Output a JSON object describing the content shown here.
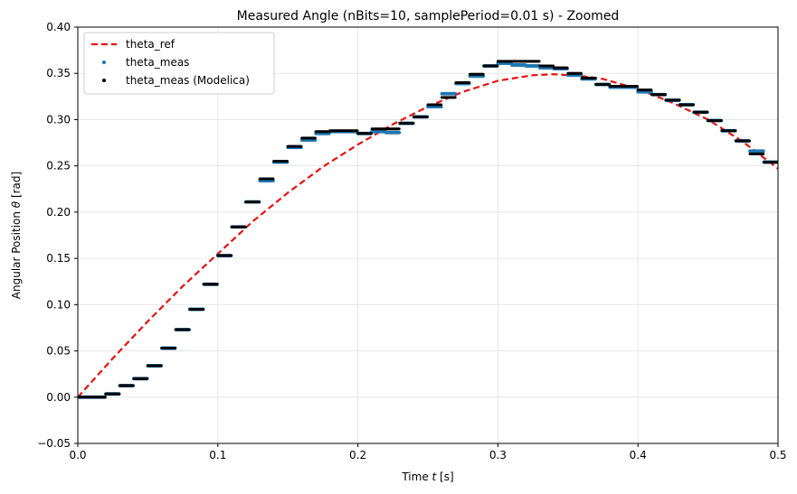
{
  "chart_data": {
    "type": "line",
    "title": "Measured Angle (nBits=10, samplePeriod=0.01 s) - Zoomed",
    "xlabel_prefix": "Time ",
    "xlabel_symbol": "t",
    "xlabel_unit": "  [s]",
    "ylabel_prefix": "Angular Position ",
    "ylabel_symbol": "θ",
    "ylabel_unit": "  [rad]",
    "xlim": [
      0.0,
      0.5
    ],
    "ylim": [
      -0.05,
      0.4
    ],
    "xticks": [
      0.0,
      0.1,
      0.2,
      0.3,
      0.4,
      0.5
    ],
    "xtick_labels": [
      "0.0",
      "0.1",
      "0.2",
      "0.3",
      "0.4",
      "0.5"
    ],
    "yticks": [
      -0.05,
      0.0,
      0.05,
      0.1,
      0.15,
      0.2,
      0.25,
      0.3,
      0.35,
      0.4
    ],
    "ytick_labels": [
      "−0.05",
      "0.00",
      "0.05",
      "0.10",
      "0.15",
      "0.20",
      "0.25",
      "0.30",
      "0.35",
      "0.40"
    ],
    "grid": true,
    "legend_position": "top-left",
    "colors": {
      "theta_ref": "#e8110f",
      "theta_meas": "#1f77b4",
      "theta_meas_modelica": "#000000",
      "grid": "#e6e6e6"
    },
    "series": [
      {
        "name": "theta_ref",
        "style": "dashed",
        "x": [
          0.0,
          0.025,
          0.05,
          0.075,
          0.1,
          0.125,
          0.15,
          0.175,
          0.2,
          0.225,
          0.25,
          0.275,
          0.3,
          0.325,
          0.34,
          0.36,
          0.375,
          0.4,
          0.425,
          0.45,
          0.475,
          0.5
        ],
        "y": [
          0.0,
          0.042,
          0.082,
          0.12,
          0.155,
          0.19,
          0.221,
          0.249,
          0.273,
          0.295,
          0.314,
          0.33,
          0.342,
          0.348,
          0.349,
          0.347,
          0.344,
          0.333,
          0.318,
          0.3,
          0.276,
          0.247
        ]
      },
      {
        "name": "theta_meas",
        "style": "dots",
        "x": [
          0.0,
          0.01,
          0.02,
          0.03,
          0.04,
          0.05,
          0.06,
          0.07,
          0.08,
          0.09,
          0.1,
          0.11,
          0.12,
          0.13,
          0.14,
          0.15,
          0.16,
          0.17,
          0.18,
          0.19,
          0.2,
          0.21,
          0.22,
          0.23,
          0.24,
          0.25,
          0.26,
          0.27,
          0.28,
          0.29,
          0.3,
          0.31,
          0.32,
          0.33,
          0.34,
          0.35,
          0.36,
          0.37,
          0.38,
          0.39,
          0.4,
          0.41,
          0.42,
          0.43,
          0.44,
          0.45,
          0.46,
          0.47,
          0.48,
          0.49
        ],
        "y": [
          0.0,
          0.0,
          0.0035,
          0.0125,
          0.02,
          0.034,
          0.053,
          0.073,
          0.095,
          0.122,
          0.153,
          0.184,
          0.211,
          0.234,
          0.254,
          0.27,
          0.278,
          0.285,
          0.287,
          0.287,
          0.285,
          0.287,
          0.286,
          0.296,
          0.303,
          0.314,
          0.328,
          0.339,
          0.347,
          0.358,
          0.361,
          0.359,
          0.358,
          0.356,
          0.355,
          0.348,
          0.344,
          0.338,
          0.335,
          0.335,
          0.33,
          0.327,
          0.321,
          0.316,
          0.308,
          0.299,
          0.288,
          0.277,
          0.266,
          0.254
        ]
      },
      {
        "name": "theta_meas (Modelica)",
        "style": "dots",
        "x": [
          0.0,
          0.01,
          0.02,
          0.03,
          0.04,
          0.05,
          0.06,
          0.07,
          0.08,
          0.09,
          0.1,
          0.11,
          0.12,
          0.13,
          0.14,
          0.15,
          0.16,
          0.17,
          0.18,
          0.19,
          0.2,
          0.21,
          0.22,
          0.23,
          0.24,
          0.25,
          0.26,
          0.27,
          0.28,
          0.29,
          0.3,
          0.31,
          0.32,
          0.33,
          0.34,
          0.35,
          0.36,
          0.37,
          0.38,
          0.39,
          0.4,
          0.41,
          0.42,
          0.43,
          0.44,
          0.45,
          0.46,
          0.47,
          0.48,
          0.49
        ],
        "y": [
          0.0,
          0.0,
          0.0035,
          0.0125,
          0.02,
          0.034,
          0.053,
          0.073,
          0.095,
          0.122,
          0.153,
          0.184,
          0.211,
          0.236,
          0.255,
          0.271,
          0.28,
          0.287,
          0.288,
          0.288,
          0.285,
          0.29,
          0.29,
          0.296,
          0.303,
          0.316,
          0.324,
          0.34,
          0.349,
          0.358,
          0.363,
          0.363,
          0.363,
          0.358,
          0.356,
          0.35,
          0.345,
          0.338,
          0.336,
          0.336,
          0.332,
          0.327,
          0.321,
          0.316,
          0.308,
          0.299,
          0.288,
          0.277,
          0.263,
          0.254
        ]
      }
    ]
  }
}
